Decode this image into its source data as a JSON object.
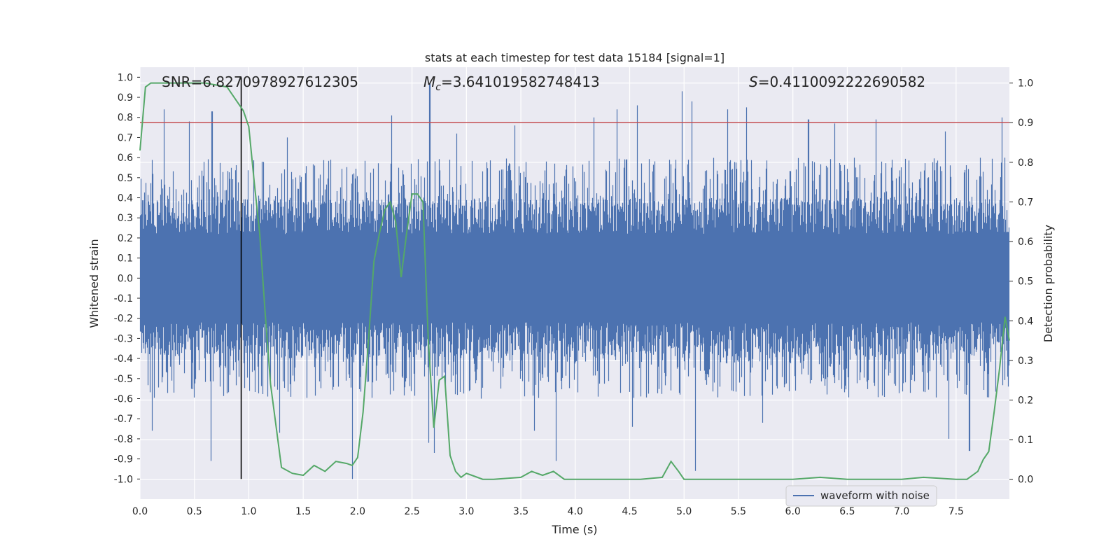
{
  "chart_data": {
    "type": "line",
    "title": "stats at each timestep for test data 15184 [signal=1]",
    "xlabel": "Time (s)",
    "ylabel_left": "Whitened strain",
    "ylabel_right": "Detection probability",
    "xlim": [
      0.0,
      7.99
    ],
    "ylim_left": [
      -1.1,
      1.05
    ],
    "ylim_right": [
      -0.05,
      1.04
    ],
    "x_ticks": [
      "0.0",
      "0.5",
      "1.0",
      "1.5",
      "2.0",
      "2.5",
      "3.0",
      "3.5",
      "4.0",
      "4.5",
      "5.0",
      "5.5",
      "6.0",
      "6.5",
      "7.0",
      "7.5"
    ],
    "y_ticks_left": [
      "1.0",
      "0.9",
      "0.8",
      "0.7",
      "0.6",
      "0.5",
      "0.4",
      "0.3",
      "0.2",
      "0.1",
      "0.0",
      "-0.1",
      "-0.2",
      "-0.3",
      "-0.4",
      "-0.5",
      "-0.6",
      "-0.7",
      "-0.8",
      "-0.9",
      "-1.0"
    ],
    "y_ticks_right": [
      "1.0",
      "0.9",
      "0.8",
      "0.7",
      "0.6",
      "0.5",
      "0.4",
      "0.3",
      "0.2",
      "0.1",
      "0.0"
    ],
    "grid": true,
    "legend": {
      "position": "lower-right",
      "entries": [
        "waveform with noise"
      ]
    },
    "annotations": {
      "snr": "SNR=6.8270978927612305",
      "mc_symbol": "M",
      "mc_sub": "c",
      "mc_value": "=3.641019582748413",
      "s_symbol": "S",
      "s_value": "=0.4110092222690582"
    },
    "threshold": {
      "value": 0.9,
      "axis": "right",
      "color": "#c44e52"
    },
    "marker_line": {
      "x": 0.93,
      "y_range": [
        -1.0,
        1.0
      ],
      "color": "#000000"
    },
    "series": [
      {
        "name": "waveform with noise",
        "axis": "left",
        "color": "#4c72b0",
        "sample_rate": 2048,
        "duration": 7.99,
        "typical_envelope": [
          -0.4,
          0.4
        ],
        "peaks": [
          {
            "x": 0.22,
            "y": 0.84
          },
          {
            "x": 0.45,
            "y": 0.78
          },
          {
            "x": 0.66,
            "y": 0.83
          },
          {
            "x": 1.35,
            "y": 0.7
          },
          {
            "x": 2.31,
            "y": 0.81
          },
          {
            "x": 2.66,
            "y": 0.97
          },
          {
            "x": 2.91,
            "y": 0.72
          },
          {
            "x": 3.44,
            "y": 0.76
          },
          {
            "x": 4.17,
            "y": 0.8
          },
          {
            "x": 4.38,
            "y": 0.84
          },
          {
            "x": 4.57,
            "y": 0.86
          },
          {
            "x": 4.98,
            "y": 0.93
          },
          {
            "x": 5.07,
            "y": 0.88
          },
          {
            "x": 5.4,
            "y": 0.84
          },
          {
            "x": 5.57,
            "y": 0.85
          },
          {
            "x": 6.14,
            "y": 0.79
          },
          {
            "x": 6.38,
            "y": 0.77
          },
          {
            "x": 6.76,
            "y": 0.79
          },
          {
            "x": 7.4,
            "y": 0.73
          },
          {
            "x": 7.92,
            "y": 0.8
          },
          {
            "x": 0.11,
            "y": -0.76
          },
          {
            "x": 0.65,
            "y": -0.91
          },
          {
            "x": 1.28,
            "y": -0.77
          },
          {
            "x": 1.95,
            "y": -1.0
          },
          {
            "x": 2.65,
            "y": -0.82
          },
          {
            "x": 2.7,
            "y": -0.87
          },
          {
            "x": 3.62,
            "y": -0.76
          },
          {
            "x": 3.82,
            "y": -0.91
          },
          {
            "x": 4.52,
            "y": -0.74
          },
          {
            "x": 5.1,
            "y": -0.96
          },
          {
            "x": 5.72,
            "y": -0.72
          },
          {
            "x": 7.43,
            "y": -0.8
          },
          {
            "x": 7.62,
            "y": -0.86
          }
        ]
      },
      {
        "name": "detection probability",
        "axis": "right",
        "color": "#55a868",
        "x": [
          0.0,
          0.05,
          0.1,
          0.2,
          0.4,
          0.6,
          0.8,
          0.9,
          0.95,
          1.0,
          1.05,
          1.1,
          1.15,
          1.2,
          1.3,
          1.4,
          1.5,
          1.6,
          1.7,
          1.8,
          1.9,
          1.95,
          2.0,
          2.05,
          2.1,
          2.15,
          2.2,
          2.25,
          2.3,
          2.35,
          2.4,
          2.45,
          2.5,
          2.55,
          2.6,
          2.65,
          2.7,
          2.75,
          2.8,
          2.85,
          2.9,
          2.95,
          3.0,
          3.05,
          3.15,
          3.25,
          3.5,
          3.6,
          3.7,
          3.8,
          3.9,
          4.0,
          4.2,
          4.4,
          4.6,
          4.8,
          4.88,
          4.95,
          5.0,
          5.2,
          5.5,
          5.8,
          6.0,
          6.25,
          6.5,
          6.8,
          7.0,
          7.2,
          7.5,
          7.6,
          7.7,
          7.75,
          7.8,
          7.85,
          7.9,
          7.95,
          7.99
        ],
        "y": [
          0.83,
          0.99,
          1.0,
          1.0,
          1.0,
          1.0,
          0.99,
          0.95,
          0.93,
          0.89,
          0.75,
          0.62,
          0.42,
          0.24,
          0.03,
          0.015,
          0.01,
          0.035,
          0.02,
          0.045,
          0.04,
          0.035,
          0.055,
          0.17,
          0.35,
          0.55,
          0.62,
          0.68,
          0.7,
          0.65,
          0.51,
          0.62,
          0.72,
          0.72,
          0.7,
          0.35,
          0.13,
          0.25,
          0.26,
          0.06,
          0.02,
          0.005,
          0.015,
          0.01,
          0.0,
          0.0,
          0.005,
          0.02,
          0.01,
          0.02,
          0.0,
          0.0,
          0.0,
          0.0,
          0.0,
          0.005,
          0.045,
          0.02,
          0.0,
          0.0,
          0.0,
          0.0,
          0.0,
          0.005,
          0.0,
          0.0,
          0.0,
          0.005,
          0.0,
          0.0,
          0.02,
          0.05,
          0.07,
          0.17,
          0.28,
          0.41,
          0.35
        ]
      }
    ]
  }
}
